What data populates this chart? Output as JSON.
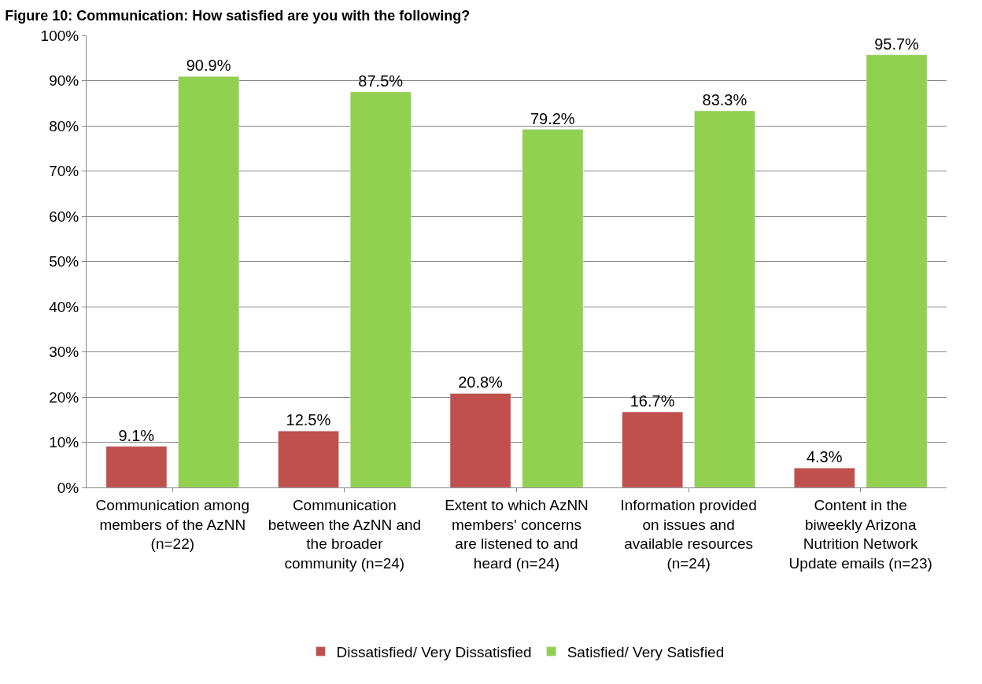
{
  "chart_data": {
    "type": "bar",
    "title": "Figure 10: Communication: How satisfied are you with the following?",
    "categories": [
      "Communication among members of the AzNN (n=22)",
      "Communication between the AzNN and the broader community (n=24)",
      "Extent to which AzNN members' concerns are listened to and heard (n=24)",
      "Information provided on issues and available resources (n=24)",
      "Content in the biweekly Arizona Nutrition Network Update emails (n=23)"
    ],
    "series": [
      {
        "name": "Dissatisfied/ Very Dissatisfied",
        "color": "#c0504d",
        "values": [
          9.1,
          12.5,
          20.8,
          16.7,
          4.3
        ],
        "value_labels": [
          "9.1%",
          "12.5%",
          "20.8%",
          "16.7%",
          "4.3%"
        ]
      },
      {
        "name": "Satisfied/ Very Satisfied",
        "color": "#92d050",
        "values": [
          90.9,
          87.5,
          79.2,
          83.3,
          95.7
        ],
        "value_labels": [
          "90.9%",
          "87.5%",
          "79.2%",
          "83.3%",
          "95.7%"
        ]
      }
    ],
    "ylim": [
      0,
      100
    ],
    "yticks": [
      {
        "value": 0,
        "label": "0%"
      },
      {
        "value": 10,
        "label": "10%"
      },
      {
        "value": 20,
        "label": "20%"
      },
      {
        "value": 30,
        "label": "30%"
      },
      {
        "value": 40,
        "label": "40%"
      },
      {
        "value": 50,
        "label": "50%"
      },
      {
        "value": 60,
        "label": "60%"
      },
      {
        "value": 70,
        "label": "70%"
      },
      {
        "value": 80,
        "label": "80%"
      },
      {
        "value": 90,
        "label": "90%"
      },
      {
        "value": 100,
        "label": "100%"
      }
    ],
    "grid": "y",
    "legend": "bottom"
  }
}
